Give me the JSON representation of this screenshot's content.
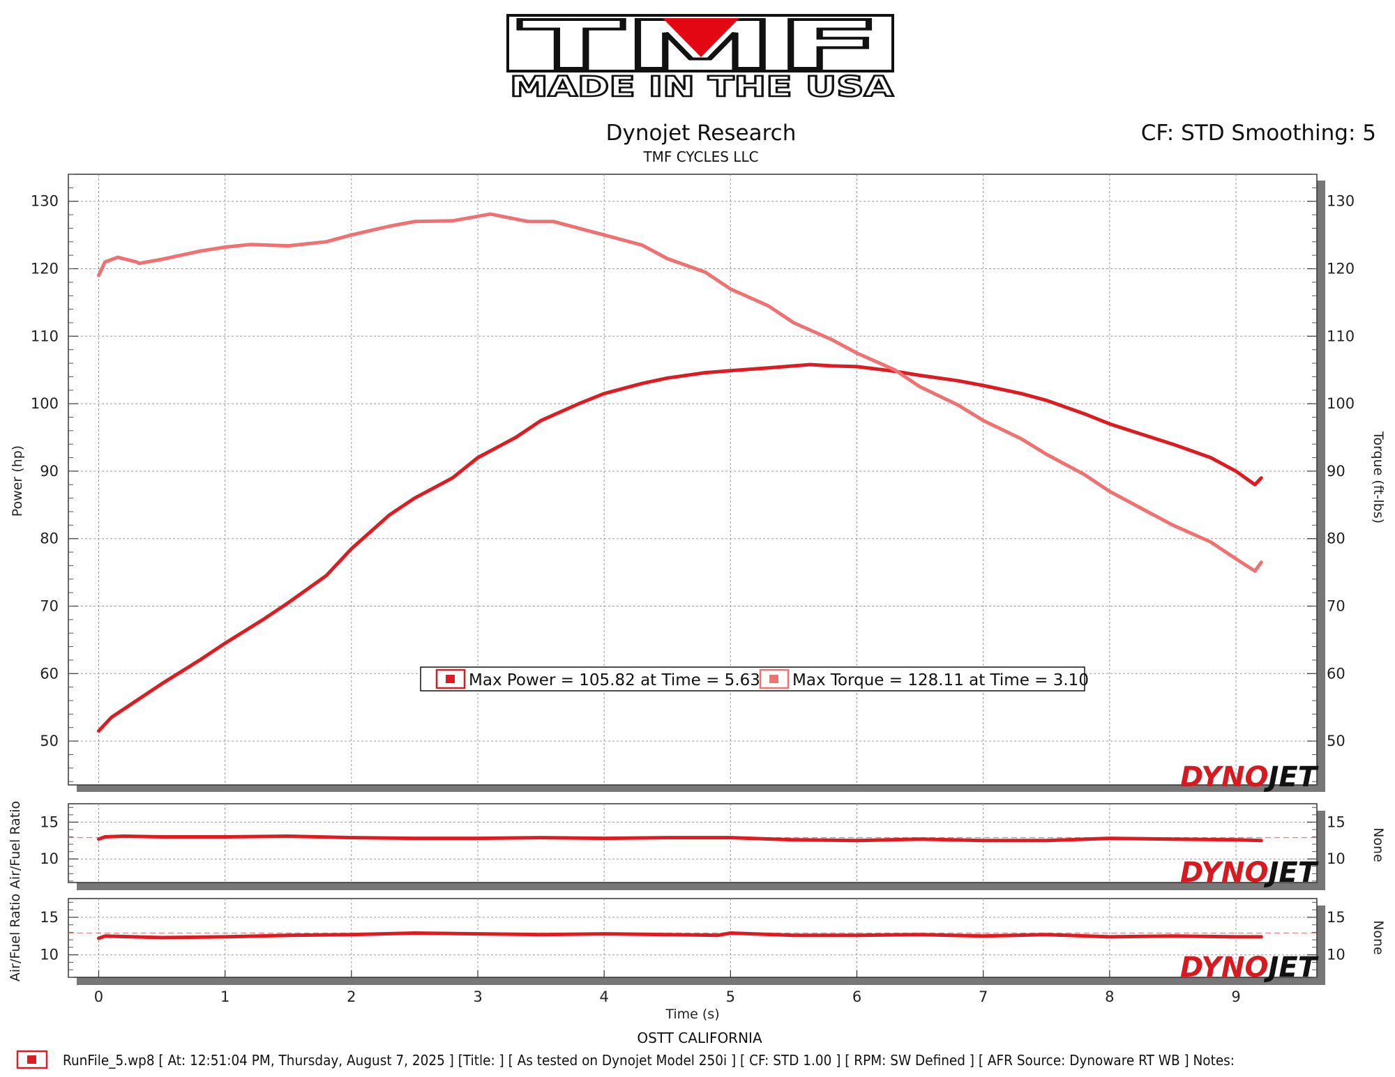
{
  "colors": {
    "power": "#dd1c22",
    "torque": "#ef7172",
    "afr": "#dd1c22",
    "ref_line": "#d9898a",
    "grid": "#9a9a9a"
  },
  "logo": {
    "letters": "TMF",
    "tagline": "MADE IN THE USA"
  },
  "header": {
    "title": "Dynojet Research",
    "subtitle": "TMF CYCLES LLC",
    "correction": "CF: STD Smoothing: 5"
  },
  "watermark": {
    "part1": "DYNO",
    "part2": "JET"
  },
  "legend": {
    "power": "Max Power = 105.82 at Time = 5.63",
    "torque": "Max Torque = 128.11 at Time = 3.10"
  },
  "chart_data": [
    {
      "type": "line",
      "ylabel": "Power (hp)",
      "y2label": "Torque (ft-lbs)",
      "xlim": [
        -0.24,
        9.64
      ],
      "ylim": [
        43.5,
        134
      ],
      "yticks": [
        50,
        60,
        70,
        80,
        90,
        100,
        110,
        120,
        130
      ],
      "grid": true,
      "legend_position": "lower-center",
      "series": [
        {
          "name": "Max Power",
          "x": [
            0,
            0.1,
            0.3,
            0.5,
            0.8,
            1.0,
            1.3,
            1.5,
            1.8,
            2.0,
            2.3,
            2.5,
            2.8,
            3.0,
            3.3,
            3.5,
            3.8,
            4.0,
            4.3,
            4.5,
            4.8,
            5.0,
            5.3,
            5.63,
            5.8,
            6.0,
            6.3,
            6.5,
            6.8,
            7.0,
            7.3,
            7.5,
            7.8,
            8.0,
            8.3,
            8.5,
            8.8,
            9.0,
            9.15,
            9.2
          ],
          "values": [
            51.5,
            53.5,
            56.0,
            58.5,
            62.0,
            64.5,
            68.0,
            70.5,
            74.5,
            78.5,
            83.5,
            86.0,
            89.0,
            92.0,
            95.0,
            97.5,
            100.0,
            101.5,
            103.0,
            103.8,
            104.6,
            104.9,
            105.3,
            105.8,
            105.6,
            105.5,
            104.8,
            104.2,
            103.4,
            102.7,
            101.5,
            100.5,
            98.5,
            97.0,
            95.2,
            94.0,
            92.0,
            90.0,
            88.0,
            89.0
          ]
        },
        {
          "name": "Max Torque",
          "x": [
            0,
            0.05,
            0.15,
            0.3,
            0.32,
            0.5,
            0.8,
            1.0,
            1.2,
            1.5,
            1.8,
            2.0,
            2.3,
            2.5,
            2.8,
            3.1,
            3.4,
            3.6,
            3.8,
            4.0,
            4.3,
            4.5,
            4.8,
            5.0,
            5.3,
            5.5,
            5.8,
            6.0,
            6.3,
            6.5,
            6.8,
            7.0,
            7.3,
            7.5,
            7.8,
            8.0,
            8.3,
            8.5,
            8.8,
            9.0,
            9.15,
            9.2
          ],
          "values": [
            119.0,
            121.0,
            121.7,
            121.0,
            120.8,
            121.4,
            122.6,
            123.2,
            123.6,
            123.4,
            124.0,
            125.0,
            126.3,
            127.0,
            127.1,
            128.1,
            127.0,
            127.0,
            126.0,
            125.0,
            123.5,
            121.5,
            119.5,
            117.0,
            114.5,
            112.0,
            109.5,
            107.5,
            105.0,
            102.5,
            99.8,
            97.5,
            94.8,
            92.5,
            89.5,
            87.0,
            84.0,
            82.0,
            79.5,
            77.0,
            75.2,
            76.5
          ]
        }
      ]
    },
    {
      "type": "line",
      "ylabel": "Air/Fuel Ratio",
      "y2label": "None",
      "xlim": [
        -0.24,
        9.64
      ],
      "ylim": [
        6.8,
        17.5
      ],
      "yticks": [
        10,
        15
      ],
      "reference_line": 12.9,
      "grid": true,
      "series": [
        {
          "name": "Air/Fuel Ratio",
          "x": [
            0,
            0.05,
            0.2,
            0.5,
            1.0,
            1.5,
            2.0,
            2.5,
            3.0,
            3.5,
            4.0,
            4.5,
            5.0,
            5.5,
            6.0,
            6.5,
            7.0,
            7.5,
            8.0,
            8.5,
            9.0,
            9.2
          ],
          "values": [
            12.7,
            13.0,
            13.1,
            13.0,
            13.0,
            13.1,
            12.9,
            12.8,
            12.8,
            12.9,
            12.8,
            12.9,
            12.9,
            12.6,
            12.5,
            12.7,
            12.5,
            12.5,
            12.8,
            12.7,
            12.6,
            12.5
          ]
        }
      ]
    },
    {
      "type": "line",
      "ylabel": "Air/Fuel Ratio",
      "y2label": "None",
      "xlim": [
        -0.24,
        9.64
      ],
      "ylim": [
        7.0,
        17.5
      ],
      "yticks": [
        10,
        15
      ],
      "reference_line": 12.9,
      "grid": true,
      "series": [
        {
          "name": "Air/Fuel Ratio",
          "x": [
            0,
            0.05,
            0.5,
            1.0,
            1.5,
            2.0,
            2.5,
            3.0,
            3.5,
            4.0,
            4.5,
            4.9,
            5.0,
            5.5,
            6.0,
            6.5,
            7.0,
            7.5,
            8.0,
            8.5,
            9.0,
            9.2
          ],
          "values": [
            12.2,
            12.5,
            12.3,
            12.4,
            12.6,
            12.7,
            12.9,
            12.8,
            12.7,
            12.8,
            12.7,
            12.6,
            12.9,
            12.6,
            12.6,
            12.7,
            12.5,
            12.7,
            12.4,
            12.5,
            12.4,
            12.4
          ]
        }
      ]
    }
  ],
  "xaxis": {
    "label": "Time (s)",
    "ticks": [
      0,
      1,
      2,
      3,
      4,
      5,
      6,
      7,
      8,
      9
    ]
  },
  "footer": {
    "location": "OSTT CALIFORNIA",
    "run_info": "RunFile_5.wp8 [ At: 12:51:04 PM, Thursday, August 7, 2025 ] [Title: ]  [ As tested on Dynojet Model 250i ] [ CF: STD 1.00 ] [ RPM: SW Defined ] [ AFR Source: Dynoware RT WB ] Notes:"
  }
}
